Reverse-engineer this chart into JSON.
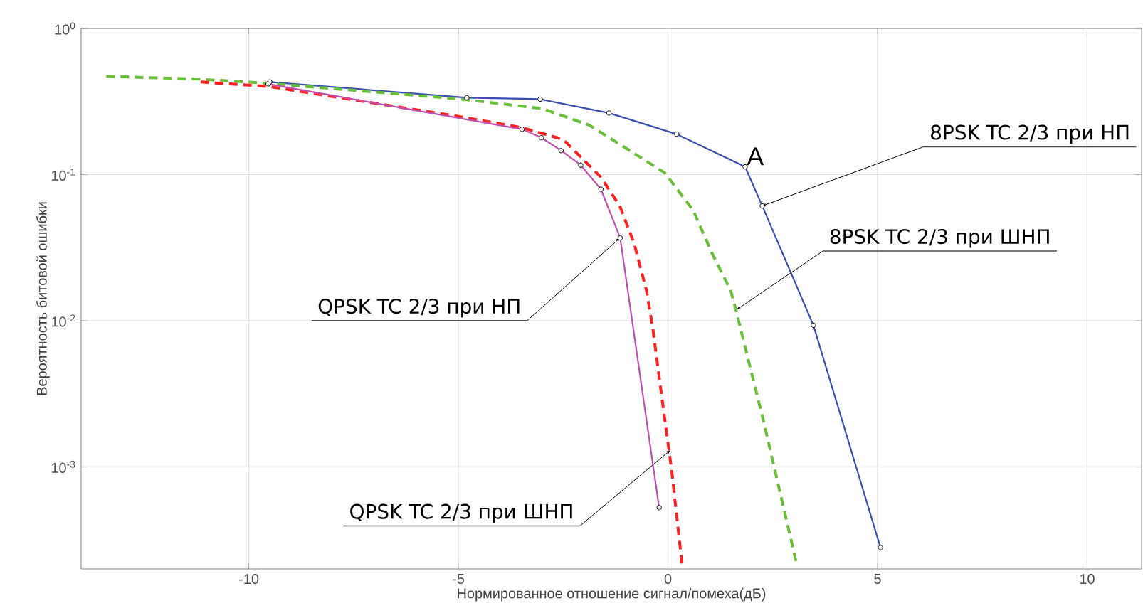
{
  "chart_data": {
    "type": "line",
    "xlabel": "Нормированное отношение сигнал/помеха(дБ)",
    "ylabel": "Вероятность битовой ошибки",
    "log": "y",
    "grid": true,
    "xlim": [
      -14,
      11.3
    ],
    "ylim": [
      0.0002,
      1
    ],
    "xticks": [
      -10,
      -5,
      {
        "value": 0,
        "label": "0"
      },
      5,
      10
    ],
    "yticks": [
      {
        "value": 1,
        "label": "10$^{0}$"
      },
      {
        "value": 0.1,
        "label": "10$^{-1}$"
      },
      {
        "value": 0.01,
        "label": "10$^{-2}$"
      },
      {
        "value": 0.001,
        "label": "10$^{-3}$"
      }
    ],
    "series": [
      {
        "color": "#3a4fb0",
        "marker": "circle",
        "line_style": "solid",
        "x": [
          -9.5,
          -4.8,
          -3.05,
          -1.41,
          0.21,
          1.84,
          2.25,
          3.47,
          5.07
        ],
        "values": [
          0.43,
          0.336,
          0.328,
          0.264,
          0.189,
          0.113,
          0.061,
          0.0093,
          0.00028
        ]
      },
      {
        "color": "#6abf3a",
        "marker": "none",
        "line_style": "dashed",
        "x": [
          -13.4,
          -11.2,
          -9.5,
          -5,
          -3,
          -1.88,
          -0.98,
          -0.08,
          0.6,
          1.05,
          1.5,
          1.62,
          2.29,
          3.08
        ],
        "values": [
          0.47,
          0.45,
          0.42,
          0.33,
          0.283,
          0.218,
          0.15,
          0.103,
          0.057,
          0.029,
          0.016,
          0.0119,
          0.002,
          0.00021
        ]
      },
      {
        "color": "#ff2020",
        "marker": "none",
        "line_style": "dashed",
        "x": [
          -11.15,
          -9.5,
          -5,
          -3.5,
          -2.5,
          -1.6,
          -1.15,
          -0.81,
          -0.51,
          -0.36,
          -0.14,
          0.09,
          0.34
        ],
        "values": [
          0.43,
          0.4,
          0.25,
          0.21,
          0.174,
          0.096,
          0.061,
          0.034,
          0.016,
          0.0088,
          0.0029,
          0.00094,
          0.00021
        ]
      },
      {
        "color": "#c050b0",
        "marker": "circle",
        "line_style": "solid",
        "x": [
          -9.54,
          -3.48,
          -3.02,
          -2.55,
          -2.08,
          -1.6,
          -1.14,
          -0.21
        ],
        "values": [
          0.417,
          0.204,
          0.179,
          0.146,
          0.116,
          0.0794,
          0.0369,
          0.000525
        ]
      }
    ],
    "annotations": [
      {
        "text": "8PSK TC 2/3 при НП",
        "x": 2.25,
        "y": 0.061
      },
      {
        "text": "8PSK TC 2/3 при ШНП",
        "x": 1.64,
        "y": 0.0119
      },
      {
        "text": "QPSK TC 2/3 при НП",
        "x": -1.14,
        "y": 0.0369
      },
      {
        "text": "QPSK TC 2/3 при ШНП",
        "x": 0.06,
        "y": 0.0013
      },
      {
        "text": "A",
        "x": 1.84,
        "y": 0.113
      }
    ]
  }
}
